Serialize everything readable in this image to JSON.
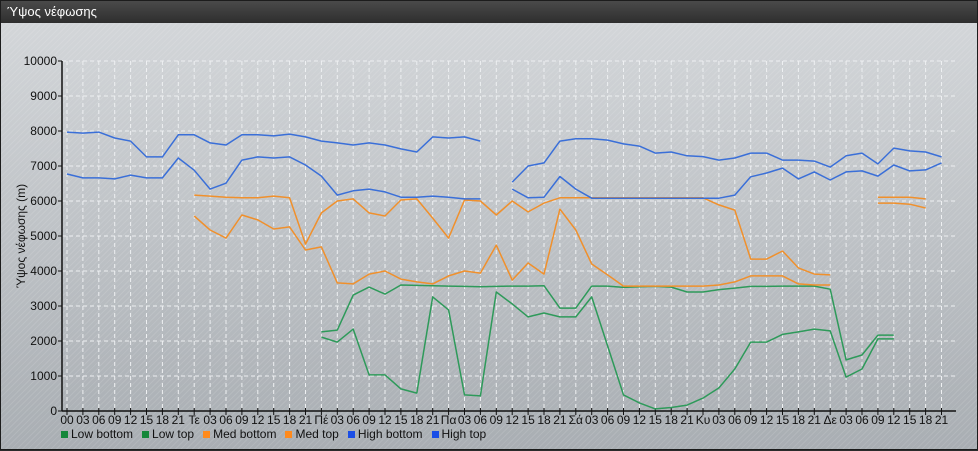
{
  "window": {
    "title": "Ύψος νέφωσης"
  },
  "chart_data": {
    "type": "line",
    "title": "",
    "ylabel": "Ύψος νέφωσης (m)",
    "xlabel": "",
    "ylim": [
      0,
      10000
    ],
    "yticks": [
      "0",
      "1000",
      "2000",
      "3000",
      "4000",
      "5000",
      "6000",
      "7000",
      "8000",
      "9000",
      "10000"
    ],
    "grid": true,
    "legend_position": "bottom-left",
    "x_tick_labels": [
      "00",
      "03",
      "06",
      "09",
      "12",
      "15",
      "18",
      "21",
      "Τε",
      "03",
      "06",
      "09",
      "12",
      "15",
      "18",
      "21",
      "Πέ",
      "03",
      "06",
      "09",
      "12",
      "15",
      "18",
      "21",
      "Πα",
      "03",
      "06",
      "09",
      "12",
      "15",
      "18",
      "21",
      "Σά",
      "03",
      "06",
      "09",
      "12",
      "15",
      "18",
      "21",
      "Κυ",
      "03",
      "06",
      "09",
      "12",
      "15",
      "18",
      "21",
      "Δε",
      "03",
      "06",
      "09",
      "12",
      "15",
      "18",
      "21"
    ],
    "series": [
      {
        "name": "Low bottom",
        "color": "#2e9a5a",
        "legend_color": "#15873a",
        "values": [
          null,
          null,
          null,
          null,
          null,
          null,
          null,
          null,
          null,
          null,
          null,
          null,
          null,
          null,
          null,
          null,
          2110,
          1970,
          2340,
          1030,
          1030,
          630,
          510,
          3260,
          2890,
          460,
          430,
          3400,
          3060,
          2690,
          2800,
          2690,
          2690,
          3260,
          1860,
          460,
          230,
          60,
          100,
          170,
          370,
          660,
          1200,
          1970,
          1970,
          2190,
          2260,
          2340,
          2290,
          970,
          1200,
          2060,
          2060,
          null,
          null,
          null
        ]
      },
      {
        "name": "Low top",
        "color": "#2e9a5a",
        "legend_color": "#15873a",
        "values": [
          null,
          null,
          null,
          null,
          null,
          null,
          null,
          null,
          null,
          null,
          null,
          null,
          null,
          null,
          null,
          null,
          2260,
          2310,
          3310,
          3540,
          3340,
          3600,
          3590,
          3580,
          3570,
          3560,
          3550,
          3560,
          3570,
          3570,
          3580,
          2940,
          2940,
          3570,
          3570,
          3530,
          3550,
          3560,
          3540,
          3400,
          3400,
          3470,
          3510,
          3560,
          3560,
          3570,
          3570,
          3570,
          3480,
          1460,
          1600,
          2170,
          2170,
          null,
          null,
          null
        ]
      },
      {
        "name": "Med bottom",
        "color": "#f0902c",
        "legend_color": "#ff8a1c",
        "values": [
          null,
          null,
          null,
          null,
          null,
          null,
          null,
          null,
          5570,
          5170,
          4940,
          5600,
          5460,
          5200,
          5260,
          4600,
          4690,
          3660,
          3630,
          3910,
          4000,
          3770,
          3690,
          3630,
          3860,
          4000,
          3940,
          4740,
          3740,
          4230,
          3910,
          5770,
          5170,
          4200,
          3890,
          3570,
          3570,
          3570,
          3570,
          3570,
          3570,
          3600,
          3690,
          3860,
          3860,
          3860,
          3630,
          3600,
          3600,
          null,
          null,
          5940,
          5940,
          5910,
          5800,
          null
        ]
      },
      {
        "name": "Med top",
        "color": "#f0902c",
        "legend_color": "#ff8a1c",
        "values": [
          null,
          null,
          null,
          null,
          null,
          null,
          null,
          null,
          6170,
          6140,
          6110,
          6090,
          6090,
          6140,
          6090,
          4770,
          5660,
          6000,
          6060,
          5660,
          5570,
          6030,
          6060,
          5510,
          4940,
          6030,
          6000,
          5600,
          6000,
          5690,
          5940,
          6090,
          6090,
          6090,
          6090,
          6090,
          6090,
          6090,
          6090,
          6090,
          6090,
          5890,
          5740,
          4340,
          4340,
          4570,
          4090,
          3910,
          3890,
          null,
          null,
          6110,
          6110,
          6110,
          6060,
          null
        ]
      },
      {
        "name": "High bottom",
        "color": "#3a6fd8",
        "legend_color": "#1a4ee6",
        "values": [
          6770,
          6660,
          6660,
          6630,
          6740,
          6660,
          6660,
          7230,
          6880,
          6340,
          6510,
          7170,
          7260,
          7230,
          7260,
          7030,
          6710,
          6170,
          6290,
          6340,
          6260,
          6110,
          6110,
          6140,
          6110,
          6060,
          6060,
          null,
          6340,
          6090,
          6110,
          6700,
          6340,
          6080,
          6080,
          6080,
          6080,
          6080,
          6080,
          6080,
          6080,
          6080,
          6170,
          6690,
          6800,
          6940,
          6630,
          6830,
          6600,
          6830,
          6860,
          6710,
          7030,
          6860,
          6890,
          7090
        ]
      },
      {
        "name": "High top",
        "color": "#3a6fd8",
        "legend_color": "#1a4ee6",
        "values": [
          7970,
          7940,
          7970,
          7800,
          7710,
          7260,
          7260,
          7890,
          7890,
          7660,
          7600,
          7890,
          7890,
          7860,
          7910,
          7830,
          7710,
          7660,
          7600,
          7660,
          7600,
          7490,
          7400,
          7830,
          7800,
          7830,
          7710,
          null,
          6540,
          7000,
          7090,
          7710,
          7780,
          7780,
          7740,
          7630,
          7570,
          7370,
          7400,
          7290,
          7270,
          7170,
          7230,
          7370,
          7370,
          7170,
          7170,
          7140,
          6970,
          7290,
          7370,
          7060,
          7510,
          7430,
          7400,
          7260
        ]
      }
    ]
  }
}
